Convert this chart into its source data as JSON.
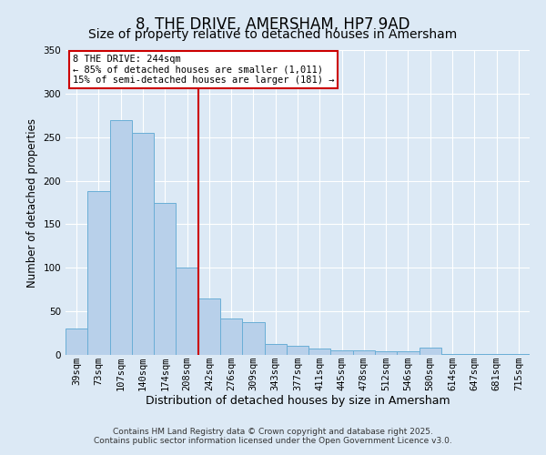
{
  "title": "8, THE DRIVE, AMERSHAM, HP7 9AD",
  "subtitle": "Size of property relative to detached houses in Amersham",
  "xlabel": "Distribution of detached houses by size in Amersham",
  "ylabel": "Number of detached properties",
  "categories": [
    "39sqm",
    "73sqm",
    "107sqm",
    "140sqm",
    "174sqm",
    "208sqm",
    "242sqm",
    "276sqm",
    "309sqm",
    "343sqm",
    "377sqm",
    "411sqm",
    "445sqm",
    "478sqm",
    "512sqm",
    "546sqm",
    "580sqm",
    "614sqm",
    "647sqm",
    "681sqm",
    "715sqm"
  ],
  "values": [
    30,
    188,
    270,
    255,
    175,
    100,
    65,
    42,
    38,
    13,
    10,
    7,
    5,
    5,
    4,
    4,
    8,
    1,
    1,
    1,
    1
  ],
  "bar_color": "#b8d0ea",
  "bar_edge_color": "#6aaed6",
  "vline_color": "#cc0000",
  "vline_x": 5.5,
  "annotation_title": "8 THE DRIVE: 244sqm",
  "annotation_line1": "← 85% of detached houses are smaller (1,011)",
  "annotation_line2": "15% of semi-detached houses are larger (181) →",
  "annotation_box_edgecolor": "#cc0000",
  "ylim": [
    0,
    350
  ],
  "yticks": [
    0,
    50,
    100,
    150,
    200,
    250,
    300,
    350
  ],
  "background_color": "#dce9f5",
  "grid_color": "#ffffff",
  "footer1": "Contains HM Land Registry data © Crown copyright and database right 2025.",
  "footer2": "Contains public sector information licensed under the Open Government Licence v3.0.",
  "title_fontsize": 12,
  "subtitle_fontsize": 10,
  "xlabel_fontsize": 9,
  "ylabel_fontsize": 8.5,
  "tick_fontsize": 7.5,
  "annotation_fontsize": 7.5,
  "footer_fontsize": 6.5
}
